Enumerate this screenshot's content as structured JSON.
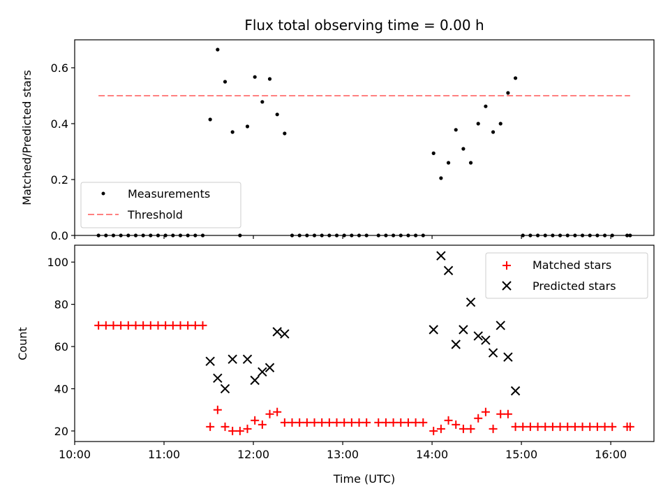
{
  "chart_data": [
    {
      "type": "scatter",
      "title": "Flux total observing time = 0.00 h",
      "xlabel": "",
      "ylabel": "Matched/Predicted stars",
      "xlim": [
        "10:00",
        "16:29"
      ],
      "ylim": [
        0,
        0.7
      ],
      "yticks": [
        "0.0",
        "0.2",
        "0.4",
        "0.6"
      ],
      "xticks": [
        "10:00",
        "11:00",
        "12:00",
        "13:00",
        "14:00",
        "15:00",
        "16:00"
      ],
      "grid": false,
      "legend_position": "lower-left",
      "series": [
        {
          "name": "Measurements",
          "marker": "dot",
          "color": "#000000",
          "points": [
            [
              "10:16",
              0
            ],
            [
              "10:21",
              0
            ],
            [
              "10:26",
              0
            ],
            [
              "10:31",
              0
            ],
            [
              "10:36",
              0
            ],
            [
              "10:41",
              0
            ],
            [
              "10:46",
              0
            ],
            [
              "10:51",
              0
            ],
            [
              "10:56",
              0
            ],
            [
              "11:01",
              0
            ],
            [
              "11:06",
              0
            ],
            [
              "11:11",
              0
            ],
            [
              "11:16",
              0
            ],
            [
              "11:21",
              0
            ],
            [
              "11:26",
              0
            ],
            [
              "11:31",
              0.415
            ],
            [
              "11:36",
              0.665
            ],
            [
              "11:41",
              0.55
            ],
            [
              "11:46",
              0.37
            ],
            [
              "11:51",
              0
            ],
            [
              "11:56",
              0.39
            ],
            [
              "12:01",
              0.567
            ],
            [
              "12:06",
              0.478
            ],
            [
              "12:11",
              0.56
            ],
            [
              "12:16",
              0.433
            ],
            [
              "12:21",
              0.365
            ],
            [
              "12:26",
              0
            ],
            [
              "12:31",
              0
            ],
            [
              "12:36",
              0
            ],
            [
              "12:41",
              0
            ],
            [
              "12:46",
              0
            ],
            [
              "12:51",
              0
            ],
            [
              "12:56",
              0
            ],
            [
              "13:01",
              0
            ],
            [
              "13:06",
              0
            ],
            [
              "13:11",
              0
            ],
            [
              "13:16",
              0
            ],
            [
              "13:24",
              0
            ],
            [
              "13:29",
              0
            ],
            [
              "13:34",
              0
            ],
            [
              "13:39",
              0
            ],
            [
              "13:44",
              0
            ],
            [
              "13:49",
              0
            ],
            [
              "13:54",
              0
            ],
            [
              "14:01",
              0.294
            ],
            [
              "14:06",
              0.205
            ],
            [
              "14:11",
              0.26
            ],
            [
              "14:16",
              0.378
            ],
            [
              "14:21",
              0.31
            ],
            [
              "14:26",
              0.26
            ],
            [
              "14:31",
              0.4
            ],
            [
              "14:36",
              0.462
            ],
            [
              "14:41",
              0.37
            ],
            [
              "14:46",
              0.4
            ],
            [
              "14:51",
              0.51
            ],
            [
              "14:56",
              0.563
            ],
            [
              "15:01",
              0
            ],
            [
              "15:06",
              0
            ],
            [
              "15:11",
              0
            ],
            [
              "15:16",
              0
            ],
            [
              "15:21",
              0
            ],
            [
              "15:26",
              0
            ],
            [
              "15:31",
              0
            ],
            [
              "15:36",
              0
            ],
            [
              "15:41",
              0
            ],
            [
              "15:46",
              0
            ],
            [
              "15:51",
              0
            ],
            [
              "15:56",
              0
            ],
            [
              "16:01",
              0
            ],
            [
              "16:11",
              0
            ],
            [
              "16:13",
              0
            ]
          ]
        },
        {
          "name": "Threshold",
          "type": "line",
          "style": "dashed",
          "color": "#ff8080",
          "points": [
            [
              "10:16",
              0.5
            ],
            [
              "16:13",
              0.5
            ]
          ]
        }
      ]
    },
    {
      "type": "scatter",
      "title": "",
      "xlabel": "Time (UTC)",
      "ylabel": "Count",
      "xlim": [
        "10:00",
        "16:29"
      ],
      "ylim": [
        15,
        108
      ],
      "yticks": [
        "20",
        "40",
        "60",
        "80",
        "100"
      ],
      "xticks": [
        "10:00",
        "11:00",
        "12:00",
        "13:00",
        "14:00",
        "15:00",
        "16:00"
      ],
      "grid": false,
      "legend_position": "upper-right",
      "series": [
        {
          "name": "Matched stars",
          "marker": "plus",
          "color": "#ff0000",
          "points": [
            [
              "10:16",
              70
            ],
            [
              "10:21",
              70
            ],
            [
              "10:26",
              70
            ],
            [
              "10:31",
              70
            ],
            [
              "10:36",
              70
            ],
            [
              "10:41",
              70
            ],
            [
              "10:46",
              70
            ],
            [
              "10:51",
              70
            ],
            [
              "10:56",
              70
            ],
            [
              "11:01",
              70
            ],
            [
              "11:06",
              70
            ],
            [
              "11:11",
              70
            ],
            [
              "11:16",
              70
            ],
            [
              "11:21",
              70
            ],
            [
              "11:26",
              70
            ],
            [
              "11:31",
              22
            ],
            [
              "11:36",
              30
            ],
            [
              "11:41",
              22
            ],
            [
              "11:46",
              20
            ],
            [
              "11:51",
              20
            ],
            [
              "11:56",
              21
            ],
            [
              "12:01",
              25
            ],
            [
              "12:06",
              23
            ],
            [
              "12:11",
              28
            ],
            [
              "12:16",
              29
            ],
            [
              "12:21",
              24
            ],
            [
              "12:26",
              24
            ],
            [
              "12:31",
              24
            ],
            [
              "12:36",
              24
            ],
            [
              "12:41",
              24
            ],
            [
              "12:46",
              24
            ],
            [
              "12:51",
              24
            ],
            [
              "12:56",
              24
            ],
            [
              "13:01",
              24
            ],
            [
              "13:06",
              24
            ],
            [
              "13:11",
              24
            ],
            [
              "13:16",
              24
            ],
            [
              "13:24",
              24
            ],
            [
              "13:29",
              24
            ],
            [
              "13:34",
              24
            ],
            [
              "13:39",
              24
            ],
            [
              "13:44",
              24
            ],
            [
              "13:49",
              24
            ],
            [
              "13:54",
              24
            ],
            [
              "14:01",
              20
            ],
            [
              "14:06",
              21
            ],
            [
              "14:11",
              25
            ],
            [
              "14:16",
              23
            ],
            [
              "14:21",
              21
            ],
            [
              "14:26",
              21
            ],
            [
              "14:31",
              26
            ],
            [
              "14:36",
              29
            ],
            [
              "14:41",
              21
            ],
            [
              "14:46",
              28
            ],
            [
              "14:51",
              28
            ],
            [
              "14:56",
              22
            ],
            [
              "15:01",
              22
            ],
            [
              "15:06",
              22
            ],
            [
              "15:11",
              22
            ],
            [
              "15:16",
              22
            ],
            [
              "15:21",
              22
            ],
            [
              "15:26",
              22
            ],
            [
              "15:31",
              22
            ],
            [
              "15:36",
              22
            ],
            [
              "15:41",
              22
            ],
            [
              "15:46",
              22
            ],
            [
              "15:51",
              22
            ],
            [
              "15:56",
              22
            ],
            [
              "16:01",
              22
            ],
            [
              "16:11",
              22
            ],
            [
              "16:13",
              22
            ]
          ]
        },
        {
          "name": "Predicted stars",
          "marker": "x",
          "color": "#000000",
          "points": [
            [
              "11:31",
              53
            ],
            [
              "11:36",
              45
            ],
            [
              "11:41",
              40
            ],
            [
              "11:46",
              54
            ],
            [
              "11:56",
              54
            ],
            [
              "12:01",
              44
            ],
            [
              "12:06",
              48
            ],
            [
              "12:11",
              50
            ],
            [
              "12:16",
              67
            ],
            [
              "12:21",
              66
            ],
            [
              "14:01",
              68
            ],
            [
              "14:06",
              103
            ],
            [
              "14:11",
              96
            ],
            [
              "14:16",
              61
            ],
            [
              "14:21",
              68
            ],
            [
              "14:26",
              81
            ],
            [
              "14:31",
              65
            ],
            [
              "14:36",
              63
            ],
            [
              "14:41",
              57
            ],
            [
              "14:46",
              70
            ],
            [
              "14:51",
              55
            ],
            [
              "14:56",
              39
            ]
          ]
        }
      ]
    }
  ]
}
